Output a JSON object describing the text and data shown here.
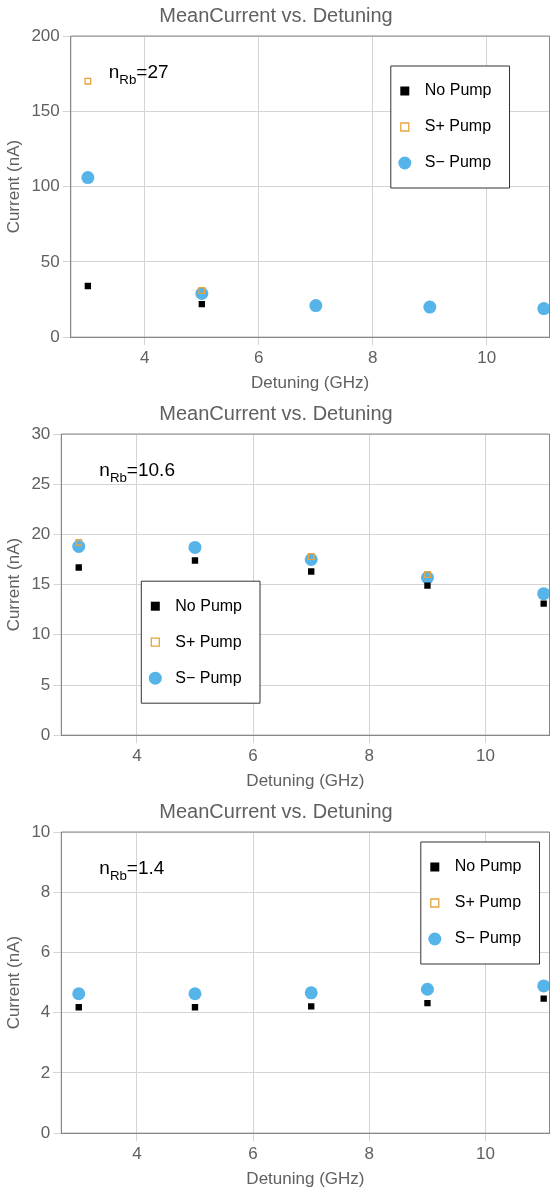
{
  "chart_data": [
    {
      "type": "scatter",
      "title": "MeanCurrent vs. Detuning",
      "xlabel": "Detuning (GHz)",
      "ylabel": "Current (nA)",
      "annotations": [
        "n$_{Rb}$=27"
      ],
      "x": [
        3,
        5,
        7,
        9,
        11
      ],
      "xlim": [
        2.7,
        11.1
      ],
      "xticks": [
        4,
        6,
        8,
        10
      ],
      "ylim": [
        0,
        200
      ],
      "yticks": [
        0,
        50,
        100,
        150,
        200
      ],
      "grid": true,
      "legend": "top right",
      "series": [
        {
          "name": "No Pump",
          "color": "#000000",
          "marker": "square",
          "values": [
            34,
            22,
            null,
            null,
            null
          ]
        },
        {
          "name": "S+ Pump",
          "color": "#e8a33c",
          "marker": "square-open",
          "values": [
            170,
            31,
            null,
            null,
            null
          ]
        },
        {
          "name": "S− Pump",
          "color": "#56b4e9",
          "marker": "circle",
          "values": [
            106,
            29,
            21,
            20,
            19
          ]
        }
      ]
    },
    {
      "type": "scatter",
      "title": "MeanCurrent vs. Detuning",
      "xlabel": "Detuning (GHz)",
      "ylabel": "Current (nA)",
      "annotations": [
        "n$_{Rb}$=10.6"
      ],
      "x": [
        3,
        5,
        7,
        9,
        11
      ],
      "xlim": [
        2.7,
        11.1
      ],
      "xticks": [
        4,
        6,
        8,
        10
      ],
      "ylim": [
        0,
        30
      ],
      "yticks": [
        0,
        5,
        10,
        15,
        20,
        25,
        30
      ],
      "grid": true,
      "legend": "bottom left",
      "series": [
        {
          "name": "No Pump",
          "color": "#000000",
          "marker": "square",
          "values": [
            16.7,
            17.4,
            16.3,
            14.9,
            13.1
          ]
        },
        {
          "name": "S+ Pump",
          "color": "#e8a33c",
          "marker": "square-open",
          "values": [
            19.2,
            null,
            17.8,
            16.0,
            null
          ]
        },
        {
          "name": "S− Pump",
          "color": "#56b4e9",
          "marker": "circle",
          "values": [
            18.8,
            18.7,
            17.5,
            15.7,
            14.1
          ]
        }
      ]
    },
    {
      "type": "scatter",
      "title": "MeanCurrent vs. Detuning",
      "xlabel": "Detuning (GHz)",
      "ylabel": "Current (nA)",
      "annotations": [
        "n$_{Rb}$=1.4"
      ],
      "x": [
        3,
        5,
        7,
        9,
        11
      ],
      "xlim": [
        2.7,
        11.1
      ],
      "xticks": [
        4,
        6,
        8,
        10
      ],
      "ylim": [
        0,
        10
      ],
      "yticks": [
        0,
        2,
        4,
        6,
        8,
        10
      ],
      "grid": true,
      "legend": "top right",
      "series": [
        {
          "name": "No Pump",
          "color": "#000000",
          "marker": "square",
          "values": [
            4.18,
            4.18,
            4.21,
            4.32,
            4.47
          ]
        },
        {
          "name": "S+ Pump",
          "color": "#e8a33c",
          "marker": "square-open",
          "values": [
            null,
            null,
            null,
            null,
            null
          ]
        },
        {
          "name": "S− Pump",
          "color": "#56b4e9",
          "marker": "circle",
          "values": [
            4.63,
            4.63,
            4.66,
            4.78,
            4.89
          ]
        }
      ]
    }
  ]
}
